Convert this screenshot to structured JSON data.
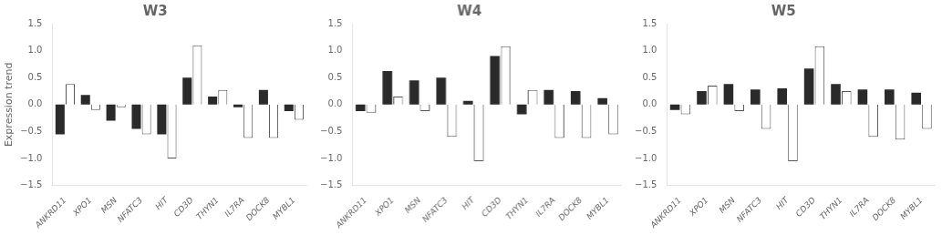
{
  "chart_data": [
    {
      "type": "bar",
      "title": "W3",
      "ylabel": "Expression trend",
      "categories": [
        "ANKRD11",
        "XPO1",
        "MSN",
        "NFATC3",
        "HIT",
        "CD3D",
        "THYN1",
        "IL7RA",
        "DOCK8",
        "MYBL1"
      ],
      "series": [
        {
          "color": "#2a2a2a",
          "values": [
            -0.55,
            0.18,
            -0.3,
            -0.45,
            -0.55,
            0.5,
            0.15,
            -0.05,
            0.27,
            -0.12
          ]
        },
        {
          "color": "#ffffff",
          "values": [
            0.38,
            -0.1,
            -0.05,
            -0.55,
            -1.0,
            1.1,
            0.27,
            -0.62,
            -0.62,
            -0.28
          ]
        }
      ],
      "ylim": [
        -1.5,
        1.5
      ],
      "yticks": [
        {
          "value": -1.5,
          "label": "−1.5"
        },
        {
          "value": -1.0,
          "label": "−1.0"
        },
        {
          "value": -0.5,
          "label": "−0.5"
        },
        {
          "value": 0.0,
          "label": "0.0"
        },
        {
          "value": 0.5,
          "label": "0.5"
        },
        {
          "value": 1.0,
          "label": "1.0"
        },
        {
          "value": 1.5,
          "label": "1.5"
        }
      ],
      "grid": false
    },
    {
      "type": "bar",
      "title": "W4",
      "categories": [
        "ANKRD11",
        "XPO1",
        "MSN",
        "NFATC3",
        "HIT",
        "CD3D",
        "THYN1",
        "IL7RA",
        "DOCK8",
        "MYBL1"
      ],
      "series": [
        {
          "color": "#2a2a2a",
          "values": [
            -0.12,
            0.62,
            0.45,
            0.5,
            0.07,
            0.9,
            -0.18,
            0.27,
            0.25,
            0.12
          ]
        },
        {
          "color": "#ffffff",
          "values": [
            -0.15,
            0.15,
            -0.12,
            -0.6,
            -1.05,
            1.08,
            0.27,
            -0.62,
            -0.62,
            -0.55
          ]
        }
      ],
      "ylim": [
        -1.5,
        1.5
      ],
      "yticks": [
        {
          "value": -1.5,
          "label": "−1.5"
        },
        {
          "value": -1.0,
          "label": "−1.0"
        },
        {
          "value": -0.5,
          "label": "−0.5"
        },
        {
          "value": 0.0,
          "label": "0.0"
        },
        {
          "value": 0.5,
          "label": "0.5"
        },
        {
          "value": 1.0,
          "label": "1.0"
        },
        {
          "value": 1.5,
          "label": "1.5"
        }
      ],
      "grid": false
    },
    {
      "type": "bar",
      "title": "W5",
      "categories": [
        "ANKRD11",
        "XPO1",
        "MSN",
        "NFATC3",
        "HIT",
        "CD3D",
        "THYN1",
        "IL7RA",
        "DOCK8",
        "MYBL1"
      ],
      "series": [
        {
          "color": "#2a2a2a",
          "values": [
            -0.1,
            0.25,
            0.38,
            0.28,
            0.3,
            0.67,
            0.38,
            0.28,
            0.28,
            0.22
          ]
        },
        {
          "color": "#ffffff",
          "values": [
            -0.18,
            0.35,
            -0.12,
            -0.45,
            -1.05,
            1.08,
            0.25,
            -0.6,
            -0.65,
            -0.45
          ]
        }
      ],
      "ylim": [
        -1.5,
        1.5
      ],
      "yticks": [
        {
          "value": -1.5,
          "label": "−1.5"
        },
        {
          "value": -1.0,
          "label": "−1.0"
        },
        {
          "value": -0.5,
          "label": "−0.5"
        },
        {
          "value": 0.0,
          "label": "0.0"
        },
        {
          "value": 0.5,
          "label": "0.5"
        },
        {
          "value": 1.0,
          "label": "1.0"
        },
        {
          "value": 1.5,
          "label": "1.5"
        }
      ],
      "grid": false
    }
  ]
}
